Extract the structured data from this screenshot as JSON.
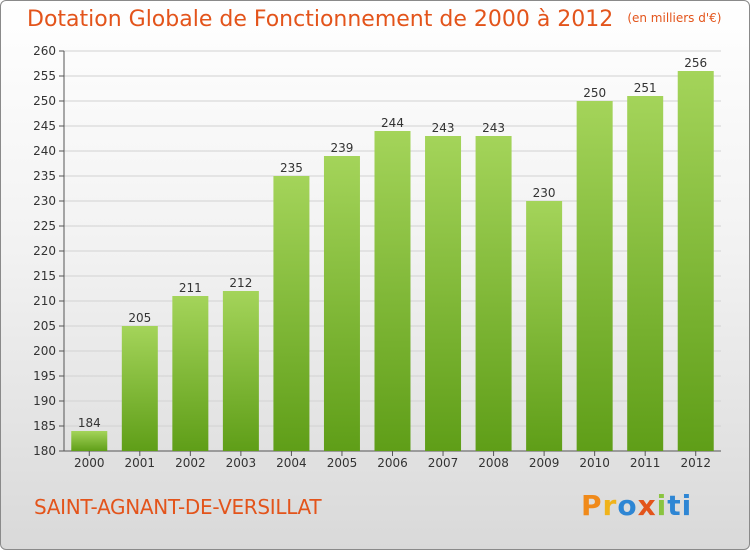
{
  "header": {
    "title": "Dotation Globale de Fonctionnement de 2000 à 2012",
    "subtitle": "(en milliers d'€)"
  },
  "footer": {
    "commune": "SAINT-AGNANT-DE-VERSILLAT",
    "logo_letters": [
      "P",
      "r",
      "o",
      "x",
      "i",
      "ti"
    ]
  },
  "colors": {
    "title": "#e3541b",
    "bar_top": "#a4d45a",
    "bar_bottom": "#5f9e18",
    "grid": "#d2d2d2"
  },
  "chart_data": {
    "type": "bar",
    "title": "Dotation Globale de Fonctionnement de 2000 à 2012",
    "subtitle": "(en milliers d'€)",
    "categories": [
      "2000",
      "2001",
      "2002",
      "2003",
      "2004",
      "2005",
      "2006",
      "2007",
      "2008",
      "2009",
      "2010",
      "2011",
      "2012"
    ],
    "values": [
      184,
      205,
      211,
      212,
      235,
      239,
      244,
      243,
      243,
      230,
      250,
      251,
      256
    ],
    "ylim": [
      180,
      260
    ],
    "yticks": [
      180,
      185,
      190,
      195,
      200,
      205,
      210,
      215,
      220,
      225,
      230,
      235,
      240,
      245,
      250,
      255,
      260
    ],
    "xlabel": "",
    "ylabel": "",
    "grid": true,
    "legend": "none"
  }
}
